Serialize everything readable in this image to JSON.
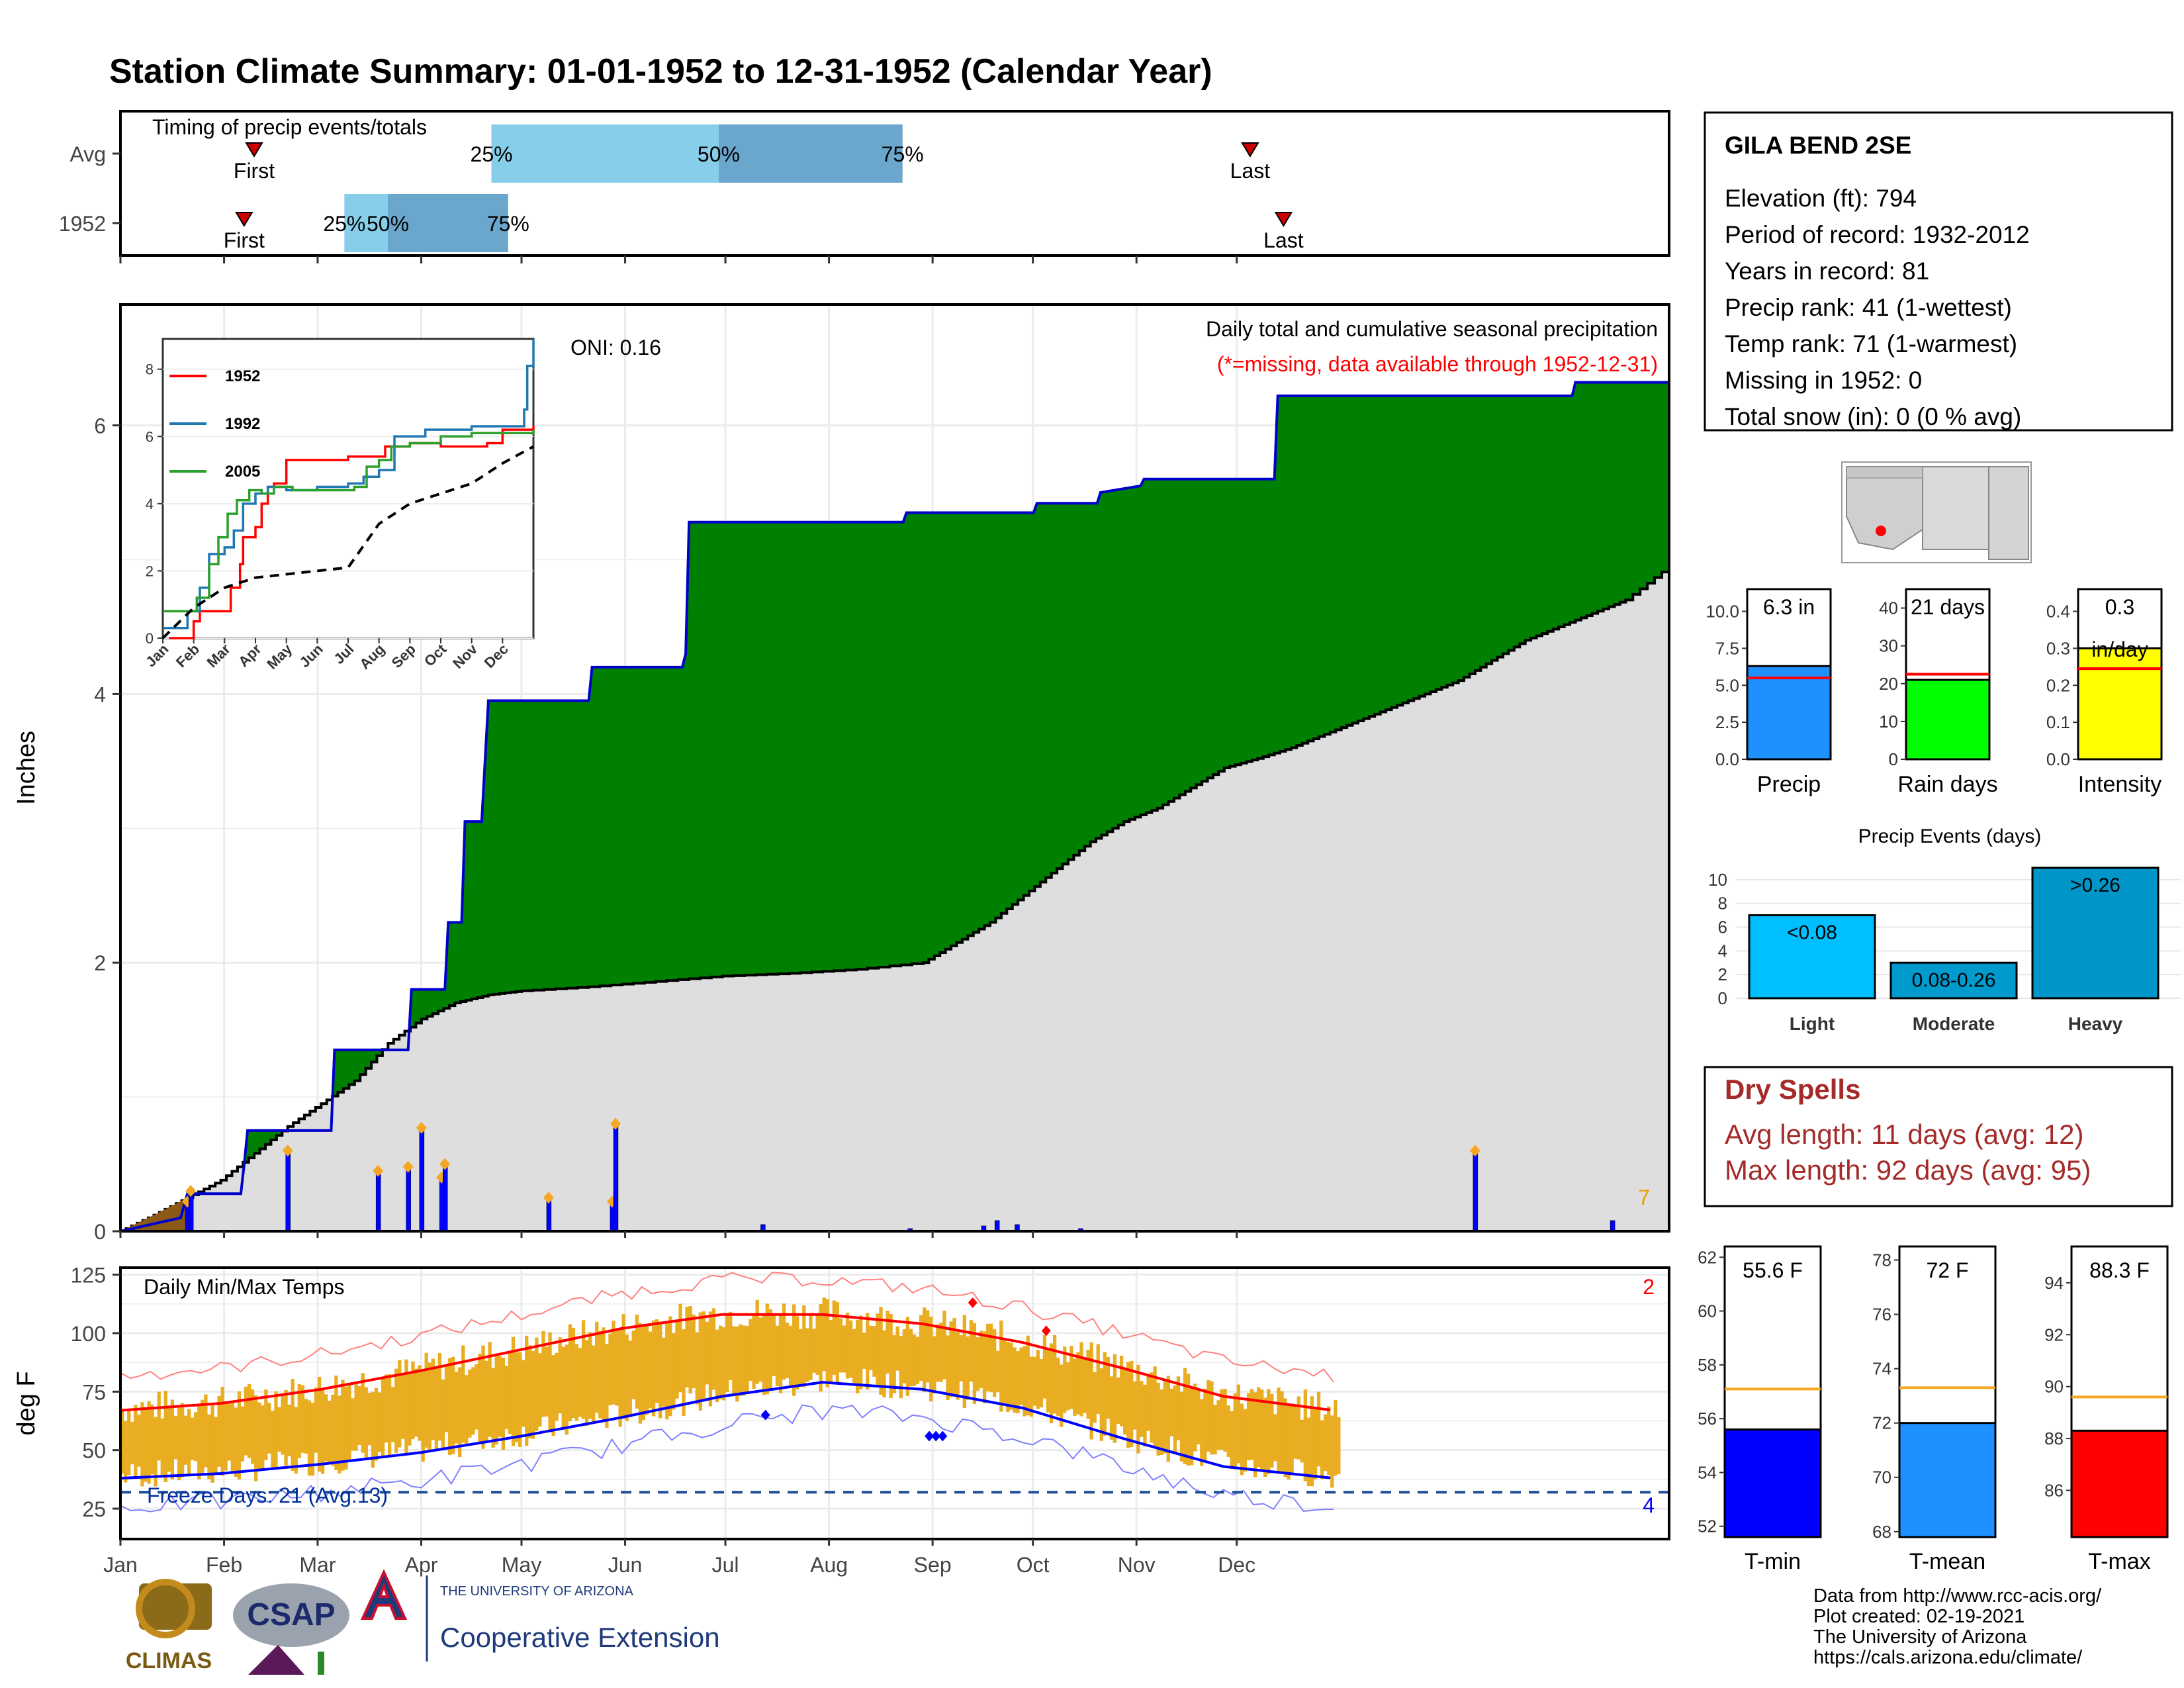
{
  "title": "Station Climate Summary: 01-01-1952 to 12-31-1952 (Calendar Year)",
  "colors": {
    "title": "#0b0b7a",
    "timing_light": "#87ceeb",
    "timing_dark": "#6ba6cc",
    "precip_green": "#008000",
    "precip_grey": "#dedede",
    "precip_brown": "#8b5a16",
    "precip_bar": "#0000ff",
    "max_temp": "#ff0000",
    "min_temp": "#0000ff",
    "temp_bar": "#e9ad22",
    "dry_spell": "#a52a2a"
  },
  "timing_panel": {
    "title": "Timing of precip events/totals",
    "rows": [
      {
        "label": "Avg",
        "first_label": "First",
        "last_label": "Last",
        "first_day": 40,
        "last_day": 338,
        "pct": [
          {
            "label": "25%",
            "day": 111
          },
          {
            "label": "50%",
            "day": 179
          },
          {
            "label": "75%",
            "day": 234
          }
        ]
      },
      {
        "label": "1952",
        "first_label": "First",
        "last_label": "Last",
        "first_day": 37,
        "last_day": 348,
        "pct": [
          {
            "label": "25%",
            "day": 67
          },
          {
            "label": "50%",
            "day": 80
          },
          {
            "label": "75%",
            "day": 116
          }
        ]
      }
    ]
  },
  "precip_panel": {
    "ylabel": "Inches",
    "subtitle": "Daily total and cumulative seasonal precipitation",
    "missing_note": "(*=missing, data available through 1952-12-31)",
    "oni": "ONI: 0.16",
    "corner_count": "7",
    "yticks": [
      "0",
      "2",
      "4",
      "6"
    ],
    "ylim": [
      0,
      6.9
    ]
  },
  "inset": {
    "legend": [
      {
        "name": "1952",
        "color": "#ff0000"
      },
      {
        "name": "1992",
        "color": "#1f77b4"
      },
      {
        "name": "2005",
        "color": "#2ca02c"
      }
    ],
    "yticks": [
      "0",
      "2",
      "4",
      "6",
      "8"
    ],
    "xticks": [
      "Jan",
      "Feb",
      "Mar",
      "Apr",
      "May",
      "Jun",
      "Jul",
      "Aug",
      "Sep",
      "Oct",
      "Nov",
      "Dec"
    ]
  },
  "temp_panel": {
    "ylabel": "deg F",
    "title": "Daily Min/Max Temps",
    "freeze_text": "Freeze Days: 21 (Avg:13)",
    "count_top": "2",
    "count_bottom": "4",
    "yticks": [
      "25",
      "50",
      "75",
      "100",
      "125"
    ],
    "ylim": [
      12,
      128
    ]
  },
  "months": [
    "Jan",
    "Feb",
    "Mar",
    "Apr",
    "May",
    "Jun",
    "Jul",
    "Aug",
    "Sep",
    "Oct",
    "Nov",
    "Dec"
  ],
  "station": {
    "name": "GILA BEND 2SE",
    "lines": [
      "Elevation (ft): 794",
      "Period of record: 1932-2012",
      "Years in record: 81",
      "Precip rank: 41 (1-wettest)",
      "Temp rank: 71 (1-warmest)",
      "Missing in 1952: 0",
      "Total snow (in): 0 (0 % avg)"
    ]
  },
  "precip_stats": [
    {
      "label": "Precip",
      "value_text": "6.3 in",
      "value": 6.3,
      "avg": 5.5,
      "ymax": 11.5,
      "ticks": [
        "0.0",
        "2.5",
        "5.0",
        "7.5",
        "10.0"
      ],
      "tick_vals": [
        0,
        2.5,
        5,
        7.5,
        10
      ],
      "color": "#1e90ff"
    },
    {
      "label": "Rain days",
      "value_text": "21 days",
      "value": 21,
      "avg": 22.5,
      "ymax": 45,
      "ticks": [
        "0",
        "10",
        "20",
        "30",
        "40"
      ],
      "tick_vals": [
        0,
        10,
        20,
        30,
        40
      ],
      "color": "#00ff00"
    },
    {
      "label": "Intensity",
      "value_text": "0.3",
      "value_text2": "in/day",
      "value": 0.3,
      "avg": 0.245,
      "ymax": 0.46,
      "ticks": [
        "0.0",
        "0.1",
        "0.2",
        "0.3",
        "0.4"
      ],
      "tick_vals": [
        0,
        0.1,
        0.2,
        0.3,
        0.4
      ],
      "color": "#ffff00"
    }
  ],
  "precip_events": {
    "title": "Precip Events (days)",
    "ticks": [
      "0",
      "2",
      "4",
      "6",
      "8",
      "10"
    ],
    "tick_vals": [
      0,
      2,
      4,
      6,
      8,
      10
    ],
    "ymax": 11.5,
    "bars": [
      {
        "label": "Light",
        "range": "<0.08",
        "value": 7,
        "color": "#00bfff"
      },
      {
        "label": "Moderate",
        "range": "0.08-0.26",
        "value": 3,
        "color": "#009acd"
      },
      {
        "label": "Heavy",
        "range": ">0.26",
        "value": 11,
        "color": "#0096c8"
      }
    ]
  },
  "dry_spells": {
    "title": "Dry Spells",
    "avg_line": "Avg length: 11 days (avg: 12)",
    "max_line": "Max length: 92 days (avg: 95)"
  },
  "temp_stats": [
    {
      "label": "T-min",
      "value_text": "55.6 F",
      "value": 55.6,
      "avg": 57.1,
      "ymin": 51.6,
      "ymax": 62.4,
      "ticks": [
        "52",
        "54",
        "56",
        "58",
        "60",
        "62"
      ],
      "tick_vals": [
        52,
        54,
        56,
        58,
        60,
        62
      ],
      "color": "#0000ff"
    },
    {
      "label": "T-mean",
      "value_text": "72 F",
      "value": 72,
      "avg": 73.3,
      "ymin": 67.8,
      "ymax": 78.5,
      "ticks": [
        "68",
        "70",
        "72",
        "74",
        "76",
        "78"
      ],
      "tick_vals": [
        68,
        70,
        72,
        74,
        76,
        78
      ],
      "color": "#1e90ff"
    },
    {
      "label": "T-max",
      "value_text": "88.3 F",
      "value": 88.3,
      "avg": 89.6,
      "ymin": 84.2,
      "ymax": 95.4,
      "ticks": [
        "86",
        "88",
        "90",
        "92",
        "94"
      ],
      "tick_vals": [
        86,
        88,
        90,
        92,
        94
      ],
      "color": "#ff0000"
    }
  ],
  "credits": [
    "Data from http://www.rcc-acis.org/",
    "Plot created: 02-19-2021",
    "The University of Arizona",
    "https://cals.arizona.edu/climate/"
  ],
  "logos": {
    "climas": "CLIMAS",
    "csap": "CSAP",
    "ua_line1": "THE UNIVERSITY OF ARIZONA",
    "ua_line2": "Cooperative Extension"
  },
  "chart_data": [
    {
      "type": "area",
      "title": "Daily total and cumulative seasonal precipitation",
      "ylabel": "Inches",
      "ylim": [
        0,
        6.9
      ],
      "x_unit": "day of year",
      "cumulative_1952": [
        [
          0,
          0
        ],
        [
          18,
          0.1
        ],
        [
          20,
          0.28
        ],
        [
          36,
          0.28
        ],
        [
          37,
          0.5
        ],
        [
          38,
          0.75
        ],
        [
          63,
          0.75
        ],
        [
          64,
          1.35
        ],
        [
          86,
          1.35
        ],
        [
          87,
          1.8
        ],
        [
          97,
          1.8
        ],
        [
          98,
          2.3
        ],
        [
          102,
          2.3
        ],
        [
          103,
          3.05
        ],
        [
          108,
          3.05
        ],
        [
          109,
          3.5
        ],
        [
          110,
          3.95
        ],
        [
          140,
          3.95
        ],
        [
          141,
          4.2
        ],
        [
          168,
          4.2
        ],
        [
          169,
          4.3
        ],
        [
          170,
          5.28
        ],
        [
          234,
          5.28
        ],
        [
          235,
          5.35
        ],
        [
          273,
          5.35
        ],
        [
          274,
          5.42
        ],
        [
          292,
          5.42
        ],
        [
          293,
          5.5
        ],
        [
          305,
          5.55
        ],
        [
          306,
          5.6
        ],
        [
          345,
          5.6
        ],
        [
          346,
          6.22
        ],
        [
          434,
          6.22
        ],
        [
          435,
          6.32
        ],
        [
          463,
          6.32
        ]
      ],
      "avg_cumulative": [
        [
          0,
          0
        ],
        [
          10,
          0.12
        ],
        [
          20,
          0.25
        ],
        [
          30,
          0.38
        ],
        [
          40,
          0.58
        ],
        [
          50,
          0.78
        ],
        [
          60,
          0.95
        ],
        [
          70,
          1.12
        ],
        [
          80,
          1.4
        ],
        [
          90,
          1.58
        ],
        [
          100,
          1.7
        ],
        [
          110,
          1.76
        ],
        [
          120,
          1.79
        ],
        [
          140,
          1.82
        ],
        [
          160,
          1.86
        ],
        [
          180,
          1.9
        ],
        [
          200,
          1.92
        ],
        [
          220,
          1.95
        ],
        [
          240,
          2.0
        ],
        [
          250,
          2.15
        ],
        [
          260,
          2.3
        ],
        [
          270,
          2.5
        ],
        [
          280,
          2.7
        ],
        [
          290,
          2.9
        ],
        [
          300,
          3.05
        ],
        [
          310,
          3.15
        ],
        [
          320,
          3.3
        ],
        [
          330,
          3.45
        ],
        [
          340,
          3.52
        ],
        [
          350,
          3.6
        ],
        [
          360,
          3.7
        ],
        [
          370,
          3.8
        ],
        [
          380,
          3.9
        ],
        [
          390,
          4.0
        ],
        [
          400,
          4.1
        ],
        [
          410,
          4.25
        ],
        [
          420,
          4.4
        ],
        [
          430,
          4.5
        ],
        [
          440,
          4.6
        ],
        [
          450,
          4.7
        ],
        [
          463,
          4.95
        ]
      ],
      "daily_precip": [
        [
          20,
          0.22
        ],
        [
          21,
          0.3
        ],
        [
          50,
          0.6
        ],
        [
          77,
          0.45
        ],
        [
          86,
          0.48
        ],
        [
          90,
          0.77
        ],
        [
          96,
          0.4
        ],
        [
          97,
          0.5
        ],
        [
          128,
          0.25
        ],
        [
          147,
          0.22
        ],
        [
          148,
          0.8
        ],
        [
          192,
          0.05
        ],
        [
          236,
          0.02
        ],
        [
          258,
          0.04
        ],
        [
          262,
          0.08
        ],
        [
          268,
          0.05
        ],
        [
          287,
          0.02
        ],
        [
          405,
          0.6
        ],
        [
          446,
          0.08
        ]
      ]
    },
    {
      "type": "line",
      "title": "Daily Min/Max Temps",
      "ylabel": "deg F",
      "ylim": [
        12,
        128
      ],
      "series": [
        {
          "name": "avg max",
          "x": [
            0,
            30,
            60,
            90,
            120,
            150,
            180,
            210,
            240,
            270,
            300,
            330,
            363
          ],
          "values": [
            67,
            70,
            76,
            84,
            93,
            102,
            108,
            108,
            104,
            96,
            85,
            73,
            67
          ]
        },
        {
          "name": "avg min",
          "x": [
            0,
            30,
            60,
            90,
            120,
            150,
            180,
            210,
            240,
            270,
            300,
            330,
            363
          ],
          "values": [
            38,
            40,
            44,
            49,
            56,
            64,
            73,
            79,
            76,
            68,
            55,
            43,
            38
          ]
        }
      ],
      "freeze_threshold": 32
    }
  ]
}
